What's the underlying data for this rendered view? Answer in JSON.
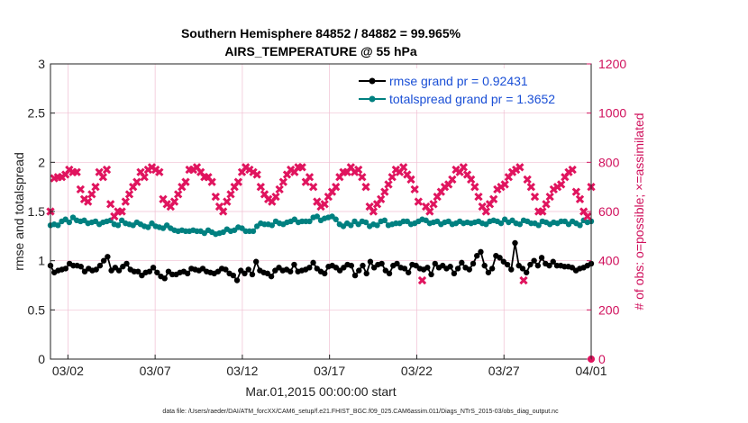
{
  "chart_data": {
    "type": "line",
    "title": "Southern Hemisphere 84852 / 84882 = 99.965%",
    "subtitle": "AIRS_TEMPERATURE @ 55 hPa",
    "xlabel": "Mar.01,2015 00:00:00 start",
    "ylabel": "rmse and totalspread",
    "ylabel_right": "# of obs: o=possible; ×=assimilated",
    "footer": "data file: /Users/raeder/DAI/ATM_forcXX/CAM6_setup/f.e21.FHIST_BGC.f09_025.CAM6assim.011/Diags_NTrS_2015-03/obs_diag_output.nc",
    "xlim": [
      0,
      31
    ],
    "ylim": [
      0,
      3
    ],
    "ylim_right": [
      0,
      1200
    ],
    "x_ticks": [
      1,
      6,
      11,
      16,
      21,
      26,
      31
    ],
    "x_tick_labels": [
      "03/02",
      "03/07",
      "03/12",
      "03/17",
      "03/22",
      "03/27",
      "04/01"
    ],
    "y_ticks": [
      "0",
      "0.5",
      "1",
      "1.5",
      "2",
      "2.5",
      "3"
    ],
    "y_ticks_right": [
      "0",
      "200",
      "400",
      "600",
      "800",
      "1000",
      "1200"
    ],
    "grid": true,
    "legend_position": "top-right",
    "series": [
      {
        "name": "rmse grand pr = 0.92431",
        "color": "#000000",
        "marker": "circle",
        "axis": "left",
        "values": [
          0.95,
          0.88,
          0.9,
          0.91,
          0.92,
          0.97,
          0.95,
          0.95,
          0.94,
          0.89,
          0.92,
          0.9,
          0.91,
          0.95,
          1.0,
          1.04,
          0.9,
          0.93,
          0.9,
          0.94,
          0.97,
          0.91,
          0.89,
          0.89,
          0.85,
          0.88,
          0.89,
          0.93,
          0.88,
          0.84,
          0.82,
          0.89,
          0.86,
          0.86,
          0.88,
          0.89,
          0.87,
          0.92,
          0.91,
          0.9,
          0.92,
          0.89,
          0.88,
          0.87,
          0.89,
          0.92,
          0.91,
          0.87,
          0.85,
          0.8,
          0.9,
          0.87,
          0.91,
          0.86,
          0.99,
          0.9,
          0.88,
          0.87,
          0.84,
          0.9,
          0.93,
          0.9,
          0.91,
          0.89,
          0.96,
          0.89,
          0.9,
          0.91,
          0.93,
          0.98,
          0.92,
          0.89,
          0.87,
          0.94,
          0.95,
          0.93,
          0.9,
          0.93,
          0.96,
          0.95,
          0.85,
          0.9,
          0.95,
          0.87,
          0.99,
          0.93,
          0.96,
          0.97,
          0.9,
          0.87,
          0.95,
          0.97,
          0.93,
          0.92,
          0.88,
          0.96,
          0.95,
          0.92,
          0.91,
          0.93,
          0.86,
          0.97,
          0.93,
          0.95,
          0.92,
          0.94,
          0.87,
          0.92,
          0.98,
          0.93,
          0.91,
          0.97,
          1.05,
          1.09,
          0.95,
          0.88,
          0.92,
          1.05,
          1.03,
          0.99,
          0.96,
          0.91,
          1.18,
          0.95,
          0.92,
          0.88,
          0.96,
          1.0,
          0.95,
          1.03,
          0.97,
          0.95,
          0.99,
          0.95,
          0.95,
          0.94,
          0.94,
          0.93,
          0.9,
          0.92,
          0.93,
          0.95,
          0.97
        ]
      },
      {
        "name": "totalspread grand pr = 1.3652",
        "color": "#008080",
        "marker": "circle",
        "axis": "left",
        "values": [
          1.36,
          1.37,
          1.36,
          1.4,
          1.42,
          1.39,
          1.44,
          1.41,
          1.4,
          1.41,
          1.38,
          1.39,
          1.4,
          1.37,
          1.39,
          1.4,
          1.41,
          1.37,
          1.36,
          1.41,
          1.38,
          1.37,
          1.36,
          1.39,
          1.37,
          1.35,
          1.34,
          1.38,
          1.35,
          1.34,
          1.33,
          1.36,
          1.33,
          1.31,
          1.3,
          1.31,
          1.3,
          1.3,
          1.31,
          1.3,
          1.3,
          1.28,
          1.31,
          1.29,
          1.27,
          1.28,
          1.29,
          1.32,
          1.3,
          1.31,
          1.34,
          1.33,
          1.3,
          1.3,
          1.3,
          1.35,
          1.38,
          1.37,
          1.37,
          1.36,
          1.4,
          1.38,
          1.37,
          1.39,
          1.4,
          1.42,
          1.39,
          1.4,
          1.4,
          1.4,
          1.44,
          1.45,
          1.41,
          1.43,
          1.44,
          1.45,
          1.42,
          1.37,
          1.35,
          1.38,
          1.36,
          1.4,
          1.37,
          1.4,
          1.39,
          1.35,
          1.37,
          1.36,
          1.4,
          1.41,
          1.36,
          1.37,
          1.38,
          1.38,
          1.4,
          1.4,
          1.37,
          1.38,
          1.4,
          1.42,
          1.41,
          1.38,
          1.39,
          1.4,
          1.37,
          1.39,
          1.4,
          1.37,
          1.38,
          1.4,
          1.38,
          1.39,
          1.38,
          1.39,
          1.4,
          1.38,
          1.37,
          1.4,
          1.41,
          1.4,
          1.38,
          1.42,
          1.39,
          1.41,
          1.38,
          1.37,
          1.41,
          1.4,
          1.38,
          1.38,
          1.36,
          1.4,
          1.39,
          1.37,
          1.39,
          1.38,
          1.4,
          1.4,
          1.37,
          1.4,
          1.38,
          1.36,
          1.41,
          1.39,
          1.4
        ]
      },
      {
        "name": "# of obs (possible and assimilated)",
        "color": "#e0145e",
        "marker": "x",
        "axis": "right",
        "values": [
          600,
          735,
          740,
          740,
          750,
          770,
          760,
          760,
          690,
          650,
          640,
          670,
          700,
          760,
          740,
          770,
          630,
          580,
          600,
          600,
          640,
          670,
          700,
          720,
          760,
          740,
          770,
          780,
          770,
          760,
          650,
          630,
          620,
          640,
          670,
          700,
          720,
          770,
          770,
          780,
          760,
          740,
          740,
          720,
          660,
          620,
          600,
          640,
          670,
          700,
          720,
          760,
          780,
          770,
          760,
          750,
          700,
          670,
          650,
          640,
          660,
          690,
          720,
          750,
          770,
          760,
          780,
          780,
          720,
          740,
          700,
          640,
          620,
          630,
          660,
          680,
          700,
          740,
          760,
          760,
          780,
          760,
          770,
          740,
          700,
          620,
          600,
          630,
          650,
          680,
          710,
          740,
          770,
          760,
          780,
          750,
          730,
          690,
          640,
          320,
          620,
          600,
          630,
          660,
          680,
          700,
          710,
          730,
          770,
          760,
          780,
          750,
          730,
          700,
          660,
          620,
          600,
          630,
          650,
          690,
          700,
          710,
          740,
          760,
          770,
          780,
          320,
          730,
          700,
          660,
          600,
          600,
          630,
          660,
          690,
          700,
          710,
          740,
          760,
          770,
          680,
          650,
          600,
          580,
          700
        ]
      }
    ],
    "zero_point_right_axis": {
      "x": 31,
      "value": 0
    }
  }
}
